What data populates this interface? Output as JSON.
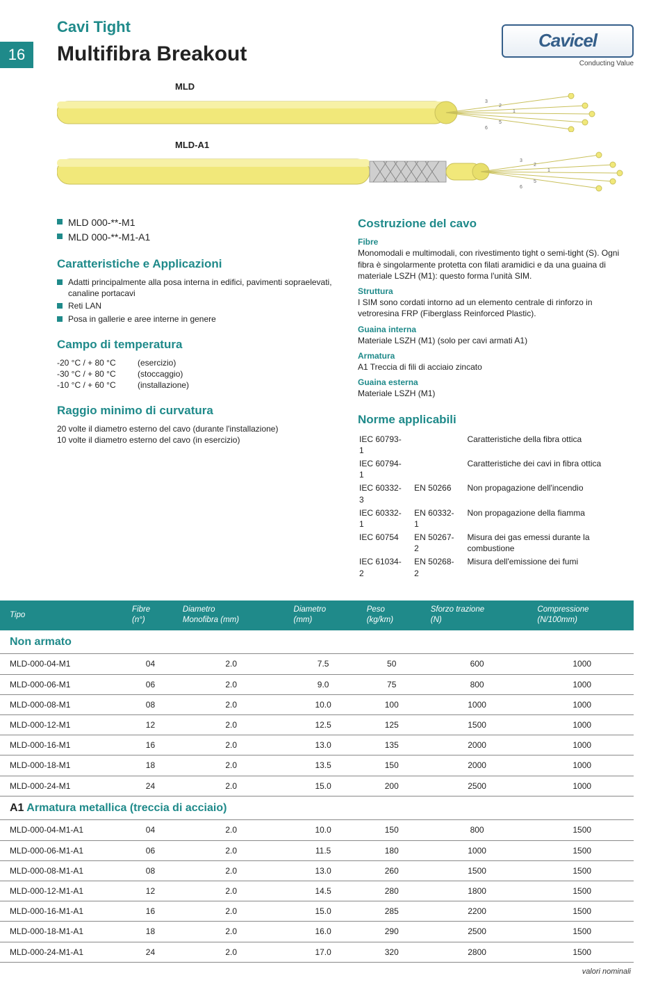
{
  "page_number": "16",
  "brand": {
    "name": "Cavicel",
    "tagline": "Conducting Value",
    "logo_border": "#355f8a",
    "logo_text_color": "#355f8a"
  },
  "title_small": "Cavi Tight",
  "title_big": "Multifibra Breakout",
  "colors": {
    "accent": "#1f8a8a",
    "text": "#222222",
    "rule": "#888888",
    "cable_yellow": "#f1e87a",
    "cable_shadow": "#c9c05b",
    "braid": "#bdbdbd",
    "core": "#9e9e9e"
  },
  "cable_labels": {
    "top": "MLD",
    "bottom": "MLD-A1"
  },
  "codes": [
    "MLD 000-**-M1",
    "MLD 000-**-M1-A1"
  ],
  "left": {
    "char_title": "Caratteristiche e Applicazioni",
    "char_items": [
      "Adatti principalmente alla posa interna in edifici, pavimenti sopraelevati, canaline portacavi",
      "Reti LAN",
      "Posa in gallerie e aree interne in genere"
    ],
    "temp_title": "Campo di temperatura",
    "temps": [
      {
        "k": "-20 °C / + 80 °C",
        "v": "(esercizio)"
      },
      {
        "k": "-30 °C / + 80 °C",
        "v": "(stoccaggio)"
      },
      {
        "k": "-10 °C / + 60 °C",
        "v": "(installazione)"
      }
    ],
    "radius_title": "Raggio minimo di curvatura",
    "radius_lines": [
      "20 volte il diametro esterno del cavo (durante l'installazione)",
      "10 volte il diametro esterno del cavo (in esercizio)"
    ]
  },
  "right": {
    "con_title": "Costruzione del cavo",
    "fibre_h": "Fibre",
    "fibre_t": "Monomodali e multimodali, con rivestimento tight o semi-tight (S). Ogni fibra è singolarmente protetta con filati aramidici e da una guaina di materiale LSZH (M1): questo forma l'unità SIM.",
    "strutt_h": "Struttura",
    "strutt_t": "I SIM sono cordati intorno ad un elemento centrale di rinforzo in vetroresina FRP (Fiberglass Reinforced Plastic).",
    "gint_h": "Guaina interna",
    "gint_t": "Materiale LSZH (M1) (solo per cavi armati A1)",
    "arm_h": "Armatura",
    "arm_t": "A1   Treccia di fili di acciaio zincato",
    "gext_h": "Guaina esterna",
    "gext_t": "Materiale LSZH (M1)",
    "norms_title": "Norme applicabili",
    "norms": [
      {
        "a": "IEC 60793-1",
        "b": "",
        "c": "Caratteristiche della fibra ottica"
      },
      {
        "a": "IEC 60794-1",
        "b": "",
        "c": "Caratteristiche dei cavi in fibra ottica"
      },
      {
        "a": "IEC 60332-3",
        "b": "EN 50266",
        "c": "Non propagazione dell'incendio"
      },
      {
        "a": "IEC 60332-1",
        "b": "EN 60332-1",
        "c": "Non propagazione della fiamma"
      },
      {
        "a": "IEC 60754",
        "b": "EN 50267-2",
        "c": "Misura dei gas emessi durante la combustione"
      },
      {
        "a": "IEC 61034-2",
        "b": "EN 50268-2",
        "c": "Misura dell'emissione dei fumi"
      }
    ]
  },
  "table": {
    "columns": [
      "Tipo",
      "Fibre\n(n°)",
      "Diametro\nMonofibra (mm)",
      "Diametro\n(mm)",
      "Peso\n(kg/km)",
      "Sforzo trazione\n(N)",
      "Compressione\n(N/100mm)"
    ],
    "section1": "Non armato",
    "rows1": [
      [
        "MLD-000-04-M1",
        "04",
        "2.0",
        "7.5",
        "50",
        "600",
        "1000"
      ],
      [
        "MLD-000-06-M1",
        "06",
        "2.0",
        "9.0",
        "75",
        "800",
        "1000"
      ],
      [
        "MLD-000-08-M1",
        "08",
        "2.0",
        "10.0",
        "100",
        "1000",
        "1000"
      ],
      [
        "MLD-000-12-M1",
        "12",
        "2.0",
        "12.5",
        "125",
        "1500",
        "1000"
      ],
      [
        "MLD-000-16-M1",
        "16",
        "2.0",
        "13.0",
        "135",
        "2000",
        "1000"
      ],
      [
        "MLD-000-18-M1",
        "18",
        "2.0",
        "13.5",
        "150",
        "2000",
        "1000"
      ],
      [
        "MLD-000-24-M1",
        "24",
        "2.0",
        "15.0",
        "200",
        "2500",
        "1000"
      ]
    ],
    "section2_prefix": "A1",
    "section2": "Armatura metallica (treccia di acciaio)",
    "rows2": [
      [
        "MLD-000-04-M1-A1",
        "04",
        "2.0",
        "10.0",
        "150",
        "800",
        "1500"
      ],
      [
        "MLD-000-06-M1-A1",
        "06",
        "2.0",
        "11.5",
        "180",
        "1000",
        "1500"
      ],
      [
        "MLD-000-08-M1-A1",
        "08",
        "2.0",
        "13.0",
        "260",
        "1500",
        "1500"
      ],
      [
        "MLD-000-12-M1-A1",
        "12",
        "2.0",
        "14.5",
        "280",
        "1800",
        "1500"
      ],
      [
        "MLD-000-16-M1-A1",
        "16",
        "2.0",
        "15.0",
        "285",
        "2200",
        "1500"
      ],
      [
        "MLD-000-18-M1-A1",
        "18",
        "2.0",
        "16.0",
        "290",
        "2500",
        "1500"
      ],
      [
        "MLD-000-24-M1-A1",
        "24",
        "2.0",
        "17.0",
        "320",
        "2800",
        "1500"
      ]
    ],
    "footnote": "valori nominali"
  }
}
